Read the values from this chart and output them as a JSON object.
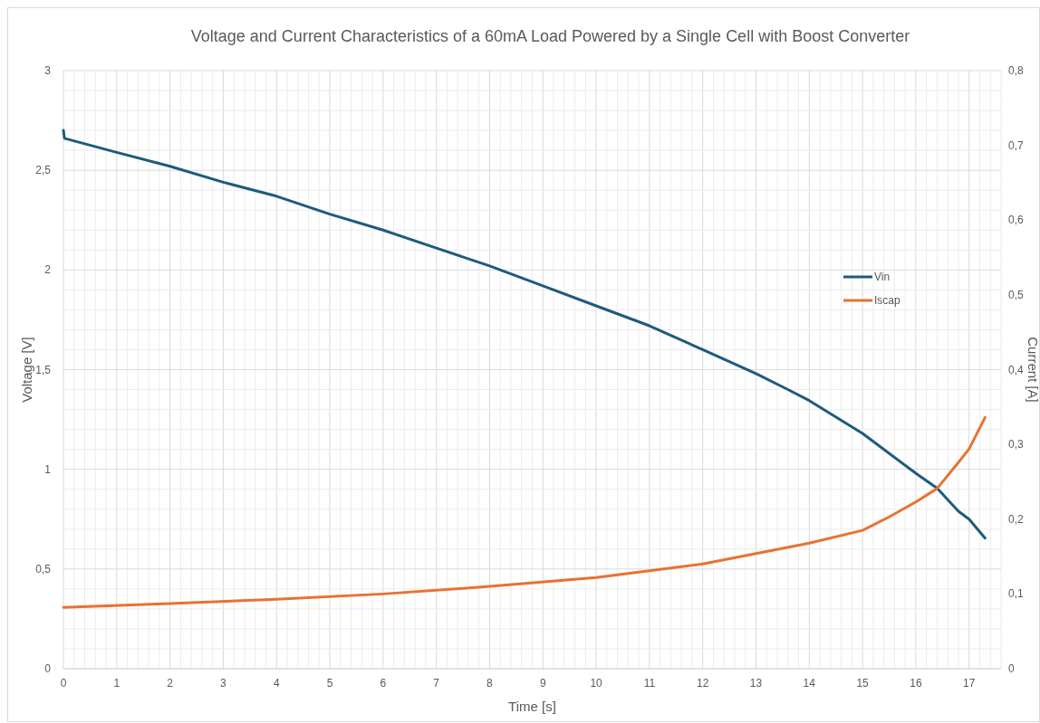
{
  "chart_data": {
    "type": "line",
    "title": "Voltage and Current Characteristics of a 60mA Load Powered by a Single Cell with Boost Converter",
    "xlabel": "Time [s]",
    "ylabel": "Voltage [V]",
    "y2label": "Current [A]",
    "xlim": [
      0,
      17.6
    ],
    "xticks": [
      0,
      1,
      2,
      3,
      4,
      5,
      6,
      7,
      8,
      9,
      10,
      11,
      12,
      13,
      14,
      15,
      16,
      17
    ],
    "ylim": [
      0,
      3
    ],
    "yticks": [
      0,
      {
        "value": 0.5,
        "label": "0,5"
      },
      1,
      {
        "value": 1.5,
        "label": "1,5"
      },
      2,
      {
        "value": 2.5,
        "label": "2,5"
      },
      3
    ],
    "y2lim": [
      0,
      0.8
    ],
    "y2ticks": [
      0,
      {
        "value": 0.1,
        "label": "0,1"
      },
      {
        "value": 0.2,
        "label": "0,2"
      },
      {
        "value": 0.3,
        "label": "0,3"
      },
      {
        "value": 0.4,
        "label": "0,4"
      },
      {
        "value": 0.5,
        "label": "0,5"
      },
      {
        "value": 0.6,
        "label": "0,6"
      },
      {
        "value": 0.7,
        "label": "0,7"
      },
      {
        "value": 0.8,
        "label": "0,8"
      }
    ],
    "grid": true,
    "legend": "right",
    "marker": "none",
    "line_style": "solid",
    "series": [
      {
        "name": "Vin",
        "color": "#1d5b7c",
        "x": [
          0,
          0.02,
          1,
          2,
          3,
          4,
          5,
          6,
          7,
          8,
          9,
          10,
          11,
          12,
          13,
          13.6,
          14,
          15,
          16,
          16.4,
          16.8,
          17,
          17.3
        ],
        "values": [
          2.7,
          2.66,
          2.59,
          2.52,
          2.44,
          2.37,
          2.28,
          2.2,
          2.11,
          2.02,
          1.92,
          1.82,
          1.72,
          1.6,
          1.48,
          1.4,
          1.345,
          1.18,
          0.98,
          0.905,
          0.79,
          0.75,
          0.655
        ]
      },
      {
        "name": "Iscap",
        "color": "#e97132",
        "axis": "y2",
        "x": [
          0,
          2,
          4,
          6,
          8,
          10,
          11,
          12,
          13,
          14,
          15,
          15.5,
          16,
          16.4,
          16.8,
          17,
          17.3
        ],
        "values": [
          0.082,
          0.087,
          0.093,
          0.1,
          0.11,
          0.122,
          0.131,
          0.14,
          0.154,
          0.168,
          0.185,
          0.203,
          0.223,
          0.241,
          0.276,
          0.294,
          0.336
        ]
      }
    ]
  }
}
